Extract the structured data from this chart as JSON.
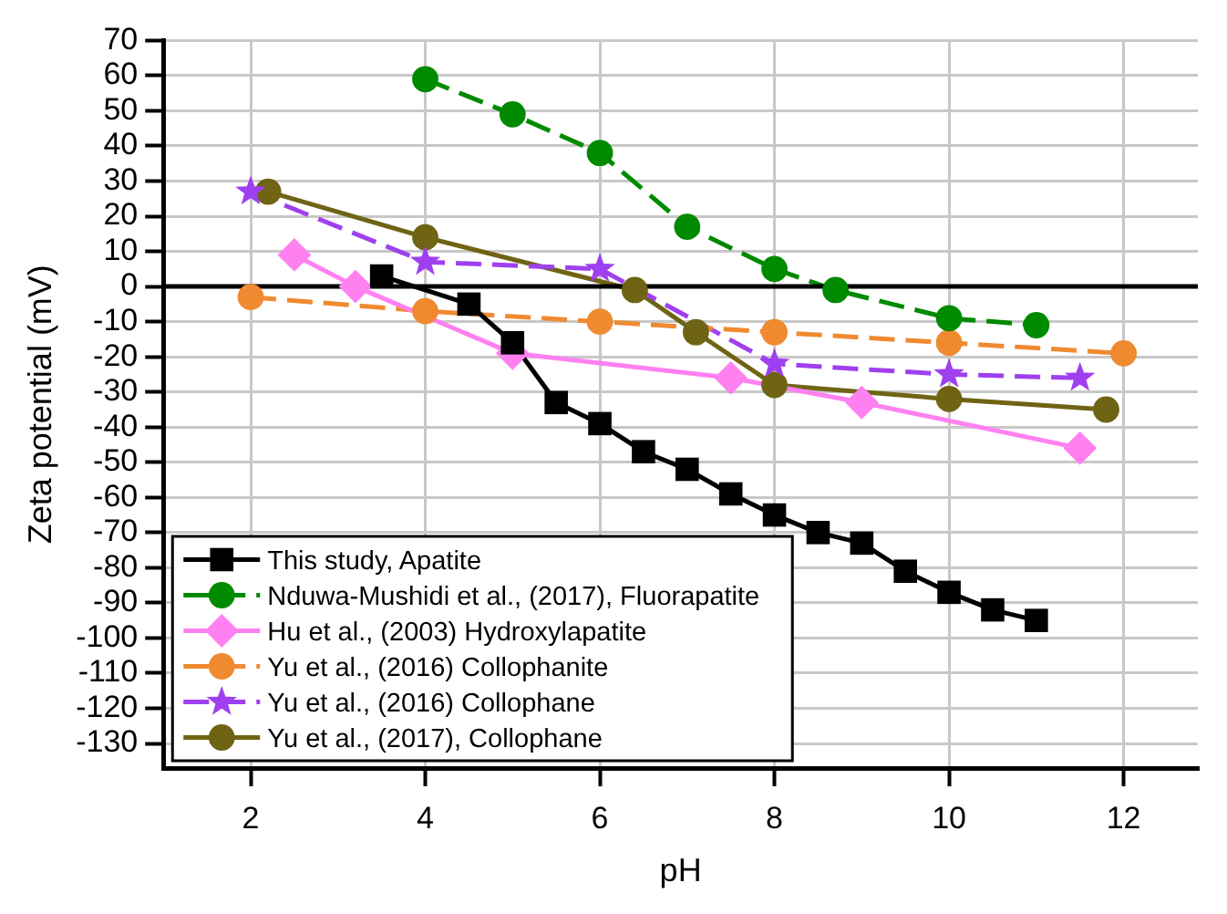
{
  "chart_data": {
    "type": "line",
    "xlabel": "pH",
    "ylabel": "Zeta potential (mV)",
    "xlim": [
      1,
      12.85
    ],
    "xticks": [
      2,
      4,
      6,
      8,
      10,
      12
    ],
    "ylim": [
      -137,
      70
    ],
    "yticks": [
      -130,
      -120,
      -110,
      -100,
      -90,
      -80,
      -70,
      -60,
      -50,
      -40,
      -30,
      -20,
      -10,
      0,
      10,
      20,
      30,
      40,
      50,
      60,
      70
    ],
    "grid": true,
    "legend": "bottom left",
    "ref_lines": [
      {
        "axis": "y",
        "value": 0,
        "color": "#000000"
      }
    ],
    "series": [
      {
        "name": "This study, Apatite",
        "color": "#000000",
        "marker": "square",
        "line_style": "solid",
        "x": [
          3.5,
          4.5,
          5,
          5.5,
          6,
          6.5,
          7,
          7.5,
          8,
          8.5,
          9,
          9.5,
          10,
          10.5,
          11
        ],
        "values": [
          3,
          -5,
          -16,
          -33,
          -39,
          -47,
          -52,
          -59,
          -65,
          -70,
          -73,
          -81,
          -87,
          -92,
          -95
        ]
      },
      {
        "name": "Nduwa-Mushidi et al., (2017), Fluorapatite",
        "color": "#008a00",
        "marker": "circle",
        "line_style": "dashed",
        "x": [
          4,
          5,
          6,
          7,
          8,
          8.7,
          10,
          11
        ],
        "values": [
          59,
          49,
          38,
          17,
          5,
          -1,
          -9,
          -11
        ]
      },
      {
        "name": "Hu et al., (2003) Hydroxylapatite",
        "color": "#ff80f0",
        "marker": "diamond",
        "line_style": "solid",
        "x": [
          2.5,
          3.2,
          5,
          7.5,
          9,
          11.5
        ],
        "values": [
          9,
          0,
          -19,
          -26,
          -33,
          -46
        ]
      },
      {
        "name": "Yu et al., (2016) Collophanite",
        "color": "#f08a30",
        "marker": "circle",
        "line_style": "dashed",
        "x": [
          2,
          4,
          6,
          8,
          10,
          12
        ],
        "values": [
          -3,
          -7,
          -10,
          -13,
          -16,
          -19
        ]
      },
      {
        "name": "Yu et al., (2016) Collophane",
        "color": "#9f40f0",
        "marker": "star",
        "line_style": "dashed",
        "x": [
          2,
          4,
          6,
          8,
          10,
          11.5
        ],
        "values": [
          27,
          7,
          5,
          -22,
          -25,
          -26
        ]
      },
      {
        "name": "Yu et al., (2017), Collophane",
        "color": "#6e6414",
        "marker": "circle",
        "line_style": "solid",
        "x": [
          2.2,
          4,
          6.4,
          7.1,
          8,
          10,
          11.8
        ],
        "values": [
          27,
          14,
          -1,
          -13,
          -28,
          -32,
          -35
        ]
      }
    ]
  }
}
